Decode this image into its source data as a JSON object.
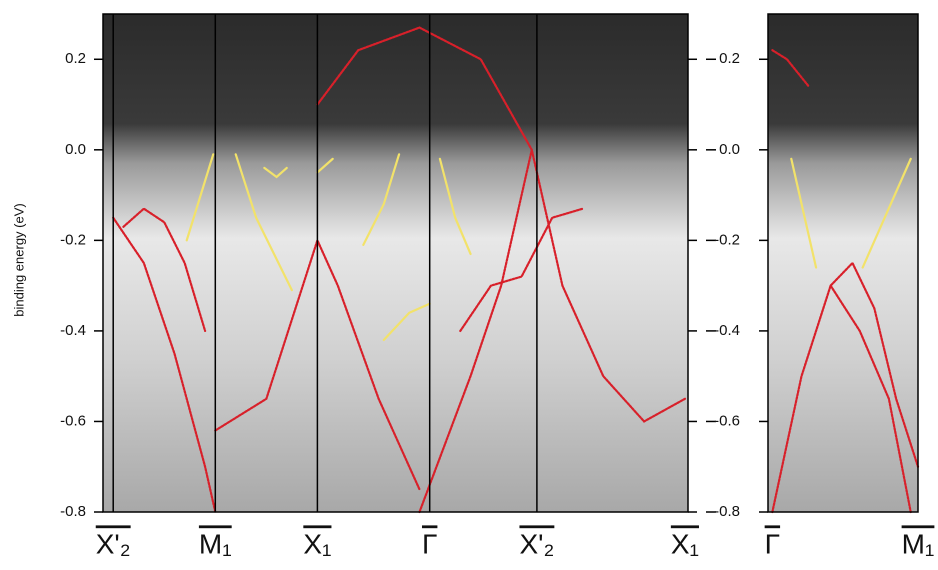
{
  "chart_data": [
    {
      "type": "line",
      "ylabel": "binding energy (eV)",
      "xlim": [
        -0.1,
        5.63
      ],
      "ylim": [
        -0.8,
        0.3
      ],
      "xticks": [
        {
          "value": 0,
          "label": "X'₂"
        },
        {
          "value": 1,
          "label": "M₁"
        },
        {
          "value": 2,
          "label": "X₁"
        },
        {
          "value": 3.1,
          "label": "Γ"
        },
        {
          "value": 4.15,
          "label": "X'₂"
        },
        {
          "value": 5.6,
          "label": "X₁"
        }
      ],
      "yticks": [
        0.2,
        {
          "value": 0,
          "label": "0.0"
        },
        -0.2,
        -0.4,
        -0.6,
        -0.8
      ],
      "series": [
        {
          "color": "#d8202a",
          "x": [
            0,
            0.3,
            0.6,
            0.9,
            1.0
          ],
          "values": [
            -0.15,
            -0.25,
            -0.45,
            -0.7,
            -0.8
          ]
        },
        {
          "color": "#d8202a",
          "x": [
            0.1,
            0.3,
            0.5,
            0.7,
            0.9
          ],
          "values": [
            -0.17,
            -0.13,
            -0.16,
            -0.25,
            -0.4
          ]
        },
        {
          "color": "#d8202a",
          "x": [
            1.0,
            1.5,
            2.0,
            2.2,
            2.6,
            3.0
          ],
          "values": [
            -0.62,
            -0.55,
            -0.2,
            -0.3,
            -0.55,
            -0.75
          ]
        },
        {
          "color": "#d8202a",
          "x": [
            3.0,
            3.5,
            3.8,
            4.1,
            4.4,
            4.8,
            5.2,
            5.6
          ],
          "values": [
            -0.8,
            -0.5,
            -0.3,
            0.0,
            -0.3,
            -0.5,
            -0.6,
            -0.55
          ]
        },
        {
          "color": "#d8202a",
          "x": [
            3.4,
            3.7,
            4.0,
            4.3,
            4.6
          ],
          "values": [
            -0.4,
            -0.3,
            -0.28,
            -0.15,
            -0.13
          ]
        },
        {
          "color": "#d8202a",
          "x": [
            2.0,
            2.4,
            3.0,
            3.6,
            4.1
          ],
          "values": [
            0.1,
            0.22,
            0.27,
            0.2,
            0.0
          ]
        },
        {
          "color": "#f2e26a",
          "x": [
            0.72,
            0.98
          ],
          "values": [
            -0.2,
            -0.01
          ]
        },
        {
          "color": "#f2e26a",
          "x": [
            1.2,
            1.4,
            1.75
          ],
          "values": [
            -0.01,
            -0.15,
            -0.31
          ]
        },
        {
          "color": "#f2e26a",
          "x": [
            1.48,
            1.6,
            1.7
          ],
          "values": [
            -0.04,
            -0.06,
            -0.04
          ]
        },
        {
          "color": "#f2e26a",
          "x": [
            2.0,
            2.15
          ],
          "values": [
            -0.05,
            -0.02
          ]
        },
        {
          "color": "#f2e26a",
          "x": [
            2.45,
            2.65,
            2.8
          ],
          "values": [
            -0.21,
            -0.12,
            -0.01
          ]
        },
        {
          "color": "#f2e26a",
          "x": [
            3.2,
            3.35,
            3.5
          ],
          "values": [
            -0.02,
            -0.15,
            -0.23
          ]
        },
        {
          "color": "#f2e26a",
          "x": [
            2.65,
            2.9,
            3.1
          ],
          "values": [
            -0.42,
            -0.36,
            -0.34
          ]
        }
      ]
    },
    {
      "type": "line",
      "xlim": [
        -0.03,
        1
      ],
      "ylim": [
        -0.8,
        0.3
      ],
      "xticks": [
        {
          "value": 0,
          "label": "Γ"
        },
        {
          "value": 1,
          "label": "M₁"
        }
      ],
      "yticks": [
        0.2,
        {
          "value": 0,
          "label": "0.0"
        },
        -0.2,
        -0.4,
        -0.6,
        -0.8
      ],
      "series": [
        {
          "color": "#d8202a",
          "x": [
            0,
            0.2,
            0.4,
            0.55,
            0.7,
            0.85,
            1.0
          ],
          "values": [
            -0.8,
            -0.5,
            -0.3,
            -0.25,
            -0.35,
            -0.55,
            -0.7
          ]
        },
        {
          "color": "#d8202a",
          "x": [
            0.4,
            0.6,
            0.8,
            0.95
          ],
          "values": [
            -0.3,
            -0.4,
            -0.55,
            -0.8
          ]
        },
        {
          "color": "#d8202a",
          "x": [
            0,
            0.1,
            0.25
          ],
          "values": [
            0.22,
            0.2,
            0.14
          ]
        },
        {
          "color": "#f2e26a",
          "x": [
            0.13,
            0.3
          ],
          "values": [
            -0.02,
            -0.26
          ]
        },
        {
          "color": "#f2e26a",
          "x": [
            0.62,
            0.95
          ],
          "values": [
            -0.26,
            -0.02
          ]
        }
      ]
    }
  ]
}
